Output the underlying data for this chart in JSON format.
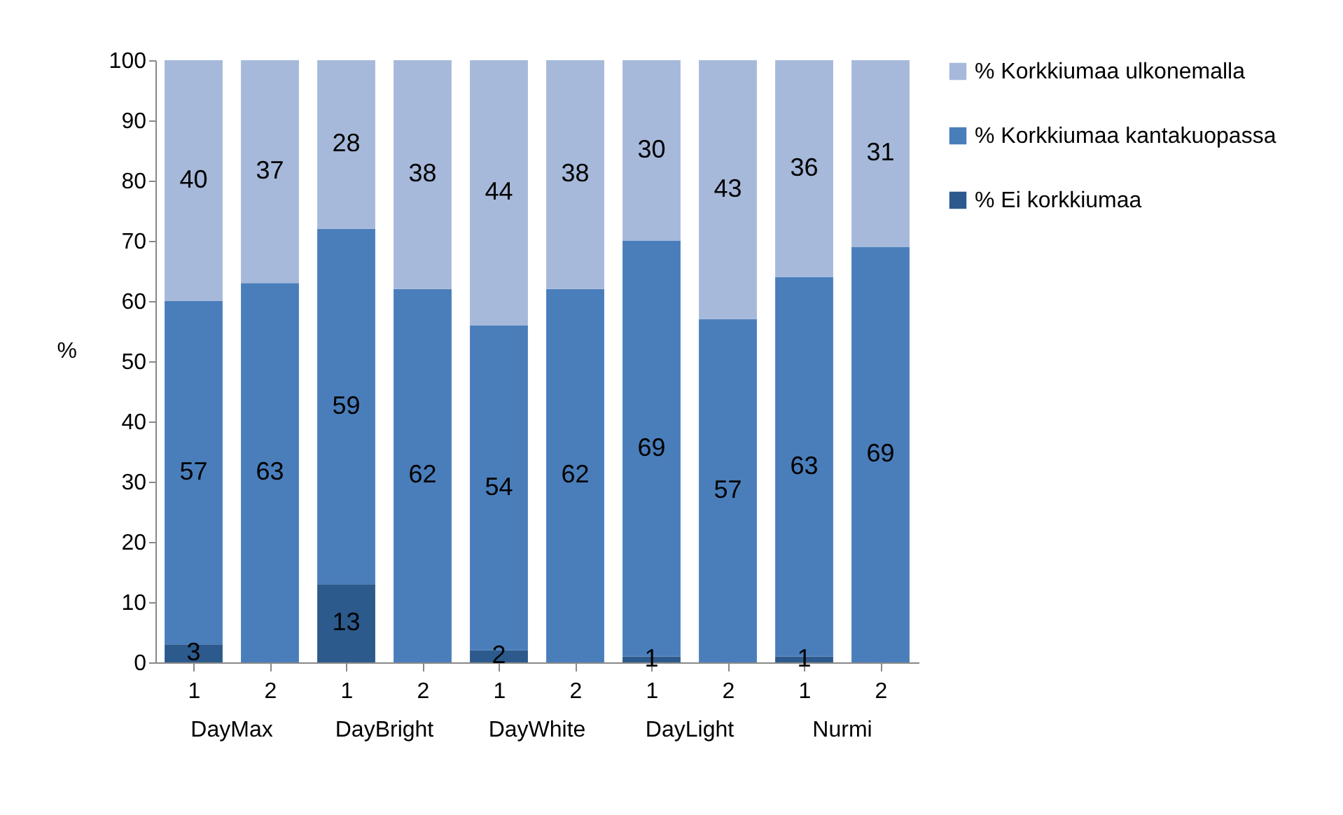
{
  "chart_data": {
    "type": "bar",
    "stacked": true,
    "ylabel": "%",
    "categories": [
      "1",
      "2",
      "1",
      "2",
      "1",
      "2",
      "1",
      "2",
      "1",
      "2"
    ],
    "annotations": [
      "DayMax",
      "DayBright",
      "DayWhite",
      "DayLight",
      "Nurmi"
    ],
    "series": [
      {
        "name": "% Ei korkkiumaa",
        "color": "#2c5a8c",
        "values": [
          3,
          0,
          13,
          0,
          2,
          0,
          1,
          0,
          1,
          0
        ],
        "value_labels": [
          "3",
          null,
          "13",
          null,
          "2",
          null,
          "1",
          null,
          "1",
          null
        ]
      },
      {
        "name": "% Korkkiumaa kantakuopassa",
        "color": "#4a7ebb",
        "values": [
          57,
          63,
          59,
          62,
          54,
          62,
          69,
          57,
          63,
          69
        ],
        "value_labels": [
          "57",
          "63",
          "59",
          "62",
          "54",
          "62",
          "69",
          "57",
          "63",
          "69"
        ]
      },
      {
        "name": "% Korkkiumaa ulkonemalla",
        "color": "#a6b9da",
        "values": [
          40,
          37,
          28,
          38,
          44,
          38,
          30,
          43,
          36,
          31
        ],
        "value_labels": [
          "40",
          "37",
          "28",
          "38",
          "44",
          "38",
          "30",
          "43",
          "36",
          "31"
        ]
      }
    ],
    "ylim": [
      0,
      100
    ],
    "yticks": [
      0,
      10,
      20,
      30,
      40,
      50,
      60,
      70,
      80,
      90,
      100
    ],
    "grid": false,
    "legend": "right"
  }
}
